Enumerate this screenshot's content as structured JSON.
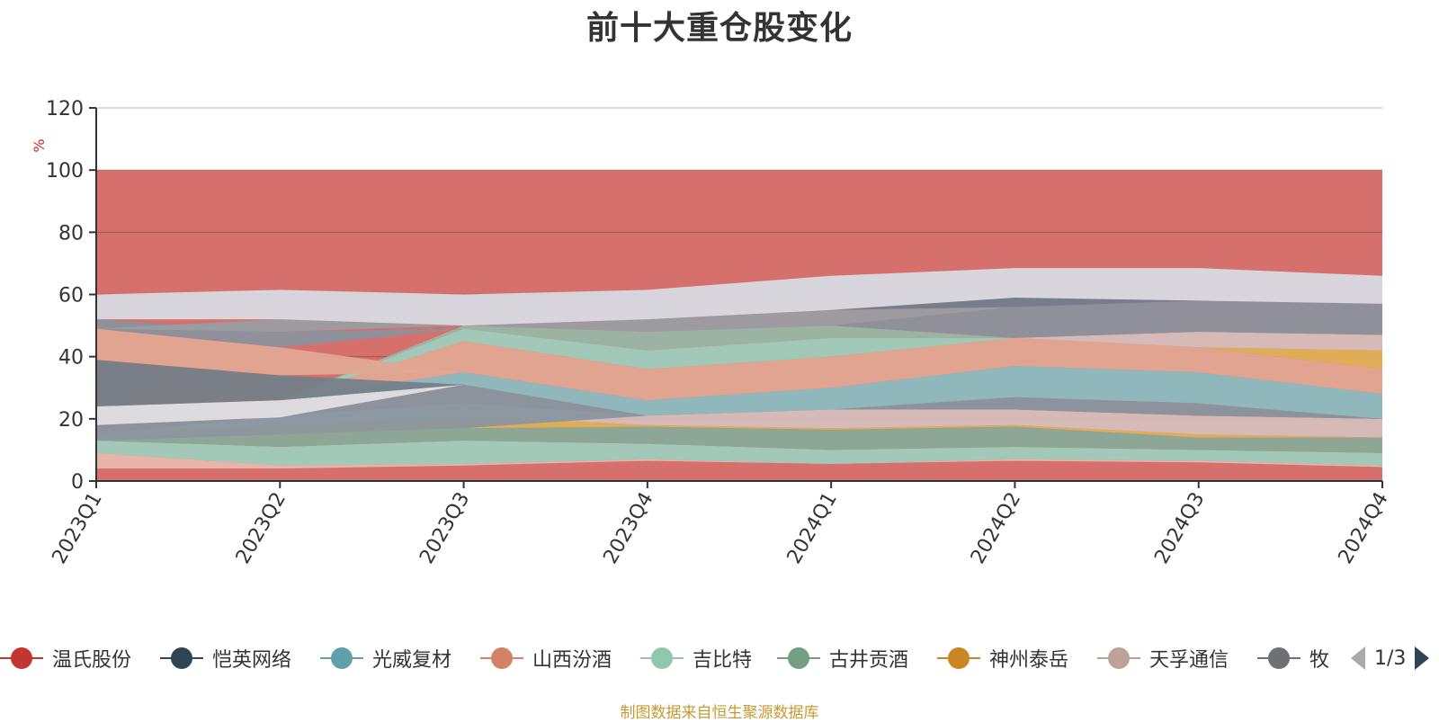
{
  "chart_data": {
    "type": "area",
    "title": "前十大重仓股变化",
    "ylabel": "%",
    "ylim": [
      0,
      120
    ],
    "yticks": [
      "0",
      "20",
      "40",
      "60",
      "80",
      "100",
      "120"
    ],
    "categories": [
      "2023Q1",
      "2023Q2",
      "2023Q3",
      "2023Q4",
      "2024Q1",
      "2024Q2",
      "2024Q3",
      "2024Q4"
    ],
    "grid": true,
    "legend_position": "bottom",
    "layers": [
      {
        "color": "#e8b9ae",
        "values": [
          [
            4,
            9
          ],
          [
            4,
            5
          ],
          [
            5,
            5.5
          ],
          [
            6.5,
            7
          ],
          [
            5.5,
            5.5
          ],
          [
            6.5,
            7
          ],
          [
            6,
            6.5
          ],
          [
            4.5,
            5
          ]
        ]
      },
      {
        "color": "#9ed0bd",
        "values": [
          [
            9,
            13
          ],
          [
            5,
            11
          ],
          [
            5.5,
            13
          ],
          [
            7,
            12
          ],
          [
            5.5,
            10
          ],
          [
            7,
            11
          ],
          [
            6.5,
            10
          ],
          [
            5,
            9
          ]
        ]
      },
      {
        "color": "#88aa99",
        "values": [
          [
            13,
            15
          ],
          [
            11,
            15
          ],
          [
            13,
            17
          ],
          [
            12,
            17.5
          ],
          [
            10,
            16.5
          ],
          [
            11,
            17.5
          ],
          [
            10,
            14
          ],
          [
            9,
            14
          ]
        ]
      },
      {
        "color": "#e0b055",
        "values": [
          [
            15,
            15
          ],
          [
            15,
            18
          ],
          [
            17,
            21
          ],
          [
            17.5,
            18
          ],
          [
            16.5,
            17
          ],
          [
            17.5,
            18
          ],
          [
            14,
            15
          ],
          [
            14,
            14
          ]
        ]
      },
      {
        "color": "#d6c0bc",
        "values": [
          [
            15,
            15
          ],
          [
            18,
            21
          ],
          [
            21,
            25
          ],
          [
            18,
            21
          ],
          [
            17,
            23
          ],
          [
            18,
            23
          ],
          [
            15,
            21
          ],
          [
            14,
            20
          ]
        ]
      },
      {
        "color": "#8896a0",
        "values": [
          [
            13,
            18
          ],
          [
            15,
            20.5
          ],
          [
            17,
            31
          ],
          [
            21,
            21
          ],
          [
            23,
            23
          ],
          [
            23,
            27
          ],
          [
            21,
            25
          ],
          [
            20,
            20
          ]
        ]
      },
      {
        "color": "#dfe3e8",
        "values": [
          [
            18,
            24
          ],
          [
            20.5,
            26
          ],
          [
            31,
            31
          ],
          [
            21,
            21
          ],
          [
            23,
            23
          ],
          [
            27,
            27
          ],
          [
            25,
            25
          ],
          [
            20,
            20
          ]
        ]
      },
      {
        "color": "#c0b4b0",
        "values": [
          [
            18,
            18
          ],
          [
            21,
            21
          ],
          [
            25,
            25
          ],
          [
            21,
            21
          ],
          [
            23,
            23
          ],
          [
            23,
            23
          ],
          [
            21,
            21
          ],
          [
            20,
            20
          ]
        ]
      },
      {
        "color": "#a0a8b0",
        "values": [
          [
            18,
            18
          ],
          [
            20,
            20
          ],
          [
            25,
            25
          ],
          [
            21,
            21
          ],
          [
            23,
            23
          ],
          [
            27,
            27
          ],
          [
            25,
            25
          ],
          [
            20,
            20
          ]
        ]
      },
      {
        "color": "#8bbcc2",
        "values": [
          [
            24,
            24
          ],
          [
            26,
            26
          ],
          [
            31,
            35
          ],
          [
            21,
            26
          ],
          [
            23,
            30
          ],
          [
            27,
            37
          ],
          [
            25,
            35
          ],
          [
            20,
            28
          ]
        ]
      },
      {
        "color": "#e2a893",
        "values": [
          [
            24,
            24
          ],
          [
            26,
            26
          ],
          [
            35,
            45
          ],
          [
            26,
            36
          ],
          [
            30,
            40
          ],
          [
            37,
            46
          ],
          [
            35,
            43
          ],
          [
            28,
            36
          ]
        ]
      },
      {
        "color": "#9ed0bd",
        "values": [
          [
            24,
            24
          ],
          [
            26,
            26
          ],
          [
            45,
            49
          ],
          [
            36,
            42
          ],
          [
            40,
            46
          ],
          [
            46,
            46
          ],
          [
            43,
            43
          ],
          [
            36,
            36
          ]
        ]
      },
      {
        "color": "#e0b055",
        "values": [
          [
            24,
            24
          ],
          [
            26,
            26
          ],
          [
            49,
            49
          ],
          [
            42,
            42
          ],
          [
            46,
            46
          ],
          [
            46,
            46
          ],
          [
            43,
            43
          ],
          [
            36,
            42
          ]
        ]
      },
      {
        "color": "#98b8a8",
        "values": [
          [
            24,
            24
          ],
          [
            26,
            26
          ],
          [
            49,
            50
          ],
          [
            42,
            48
          ],
          [
            46,
            50
          ],
          [
            46,
            46
          ],
          [
            43,
            43
          ],
          [
            42,
            42
          ]
        ]
      },
      {
        "color": "#d6c0bc",
        "values": [
          [
            24,
            24
          ],
          [
            26,
            26
          ],
          [
            50,
            50
          ],
          [
            48,
            48
          ],
          [
            50,
            50
          ],
          [
            46,
            46
          ],
          [
            43,
            48
          ],
          [
            42,
            47
          ]
        ]
      },
      {
        "color": "#737f89",
        "values": [
          [
            24,
            39
          ],
          [
            26,
            34
          ],
          [
            31,
            31
          ],
          [
            21,
            21
          ],
          [
            23,
            23
          ],
          [
            27,
            27
          ],
          [
            25,
            25
          ],
          [
            20,
            20
          ]
        ]
      },
      {
        "color": "#e2a893",
        "values": [
          [
            39,
            49
          ],
          [
            34,
            43
          ],
          [
            35,
            35
          ],
          [
            26,
            26
          ],
          [
            30,
            30
          ],
          [
            37,
            37
          ],
          [
            35,
            35
          ],
          [
            28,
            28
          ]
        ]
      },
      {
        "color": "#8a929c",
        "values": [
          [
            49,
            52
          ],
          [
            43,
            48
          ],
          [
            49,
            49
          ],
          [
            48,
            48
          ],
          [
            50,
            50
          ],
          [
            46,
            56
          ],
          [
            48,
            58
          ],
          [
            47,
            57
          ]
        ]
      },
      {
        "color": "#9a9ea4",
        "values": [
          [
            49,
            49
          ],
          [
            48,
            52
          ],
          [
            50,
            50
          ],
          [
            48,
            52
          ],
          [
            50,
            55
          ],
          [
            56,
            56
          ],
          [
            58,
            58
          ],
          [
            57,
            57
          ]
        ]
      },
      {
        "color": "#6e7f8c",
        "values": [
          [
            52,
            52
          ],
          [
            52,
            52
          ],
          [
            50,
            50
          ],
          [
            52,
            52
          ],
          [
            55,
            55
          ],
          [
            56,
            59
          ],
          [
            58,
            58
          ],
          [
            57,
            57
          ]
        ]
      },
      {
        "color": "#d8dde4",
        "values": [
          [
            52,
            60
          ],
          [
            52,
            61.5
          ],
          [
            50,
            60
          ],
          [
            52,
            61.5
          ],
          [
            55,
            66
          ],
          [
            59,
            68.5
          ],
          [
            58,
            68.5
          ],
          [
            57,
            66
          ]
        ]
      }
    ],
    "legend": [
      {
        "name": "温氏股份",
        "color": "#c23531"
      },
      {
        "name": "恺英网络",
        "color": "#2f4554"
      },
      {
        "name": "光威复材",
        "color": "#61a0a8"
      },
      {
        "name": "山西汾酒",
        "color": "#d48265"
      },
      {
        "name": "吉比特",
        "color": "#91c7ae"
      },
      {
        "name": "古井贡酒",
        "color": "#749f83"
      },
      {
        "name": "神州泰岳",
        "color": "#ca8622"
      },
      {
        "name": "天孚通信",
        "color": "#bda29a"
      },
      {
        "name": "牧原股份",
        "color": "#6e7074"
      }
    ],
    "legend_page": "1/3",
    "source_note": "制图数据来自恒生聚源数据库"
  }
}
